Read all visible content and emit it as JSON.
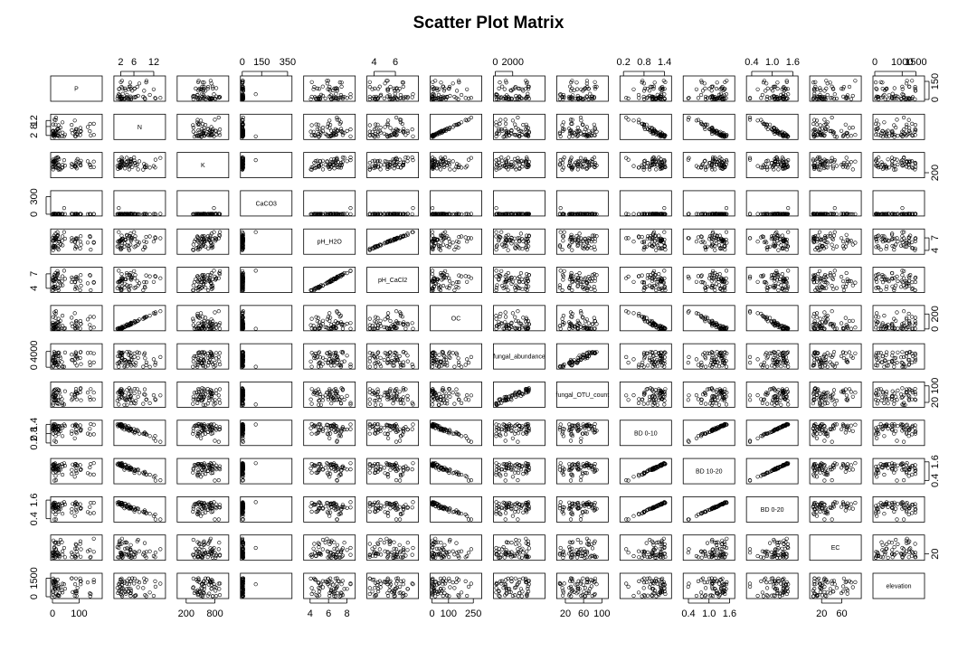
{
  "chart_data": {
    "type": "scatter",
    "title": "Scatter Plot Matrix",
    "variables": [
      {
        "name": "P",
        "range": [
          0,
          180
        ],
        "ticks": [
          {
            "value": 0,
            "label": "0"
          },
          {
            "value": 100,
            "label": "100"
          }
        ]
      },
      {
        "name": "N",
        "range": [
          0.5,
          15
        ],
        "ticks": [
          {
            "value": 2,
            "label": "2"
          },
          {
            "value": 6,
            "label": "6"
          },
          {
            "value": 12,
            "label": "12"
          }
        ]
      },
      {
        "name": "K",
        "range": [
          50,
          1050
        ],
        "ticks": [
          {
            "value": 200,
            "label": "200"
          },
          {
            "value": 800,
            "label": "800"
          }
        ]
      },
      {
        "name": "CaCO3",
        "range": [
          0,
          370
        ],
        "ticks": [
          {
            "value": 0,
            "label": "0"
          },
          {
            "value": 150,
            "label": "150"
          },
          {
            "value": 350,
            "label": "350"
          }
        ]
      },
      {
        "name": "pH_H2O",
        "range": [
          3.5,
          8.7
        ],
        "ticks": [
          {
            "value": 4,
            "label": "4"
          },
          {
            "value": 6,
            "label": "6"
          },
          {
            "value": 8,
            "label": "8"
          }
        ]
      },
      {
        "name": "pH_CaCl2",
        "range": [
          3.5,
          8.0
        ],
        "ticks": [
          {
            "value": 4,
            "label": "4"
          },
          {
            "value": 6,
            "label": "6"
          }
        ]
      },
      {
        "name": "OC",
        "range": [
          0,
          290
        ],
        "ticks": [
          {
            "value": 0,
            "label": "0"
          },
          {
            "value": 100,
            "label": "100"
          },
          {
            "value": 250,
            "label": "250"
          }
        ]
      },
      {
        "name": "fungal_abundance",
        "range": [
          0,
          5500
        ],
        "ticks": [
          {
            "value": 0,
            "label": "0"
          },
          {
            "value": 2000,
            "label": "2000"
          }
        ]
      },
      {
        "name": "fungal_OTU_count",
        "range": [
          5,
          110
        ],
        "ticks": [
          {
            "value": 20,
            "label": "20"
          },
          {
            "value": 60,
            "label": "60"
          },
          {
            "value": 100,
            "label": "100"
          }
        ]
      },
      {
        "name": "BD 0-10",
        "range": [
          0.15,
          1.55
        ],
        "ticks": [
          {
            "value": 0.2,
            "label": "0.2"
          },
          {
            "value": 0.8,
            "label": "0.8"
          },
          {
            "value": 1.4,
            "label": "1.4"
          }
        ]
      },
      {
        "name": "BD 10-20",
        "range": [
          0.3,
          1.7
        ],
        "ticks": [
          {
            "value": 0.4,
            "label": "0.4"
          },
          {
            "value": 1.0,
            "label": "1.0"
          },
          {
            "value": 1.6,
            "label": "1.6"
          }
        ]
      },
      {
        "name": "BD 0-20",
        "range": [
          0.3,
          1.7
        ],
        "ticks": [
          {
            "value": 0.4,
            "label": "0.4"
          },
          {
            "value": 1.0,
            "label": "1.0"
          },
          {
            "value": 1.6,
            "label": "1.6"
          }
        ]
      },
      {
        "name": "EC",
        "range": [
          0,
          95
        ],
        "ticks": [
          {
            "value": 20,
            "label": "20"
          },
          {
            "value": 60,
            "label": "60"
          }
        ]
      },
      {
        "name": "elevation",
        "range": [
          0,
          1750
        ],
        "ticks": [
          {
            "value": 0,
            "label": "0"
          },
          {
            "value": 1000,
            "label": "1000"
          },
          {
            "value": 1500,
            "label": "1500"
          }
        ]
      }
    ],
    "y_tick_overrides": {
      "P": [
        {
          "value": 0,
          "label": "0"
        },
        {
          "value": 150,
          "label": "150"
        }
      ],
      "N": [
        {
          "value": 2,
          "label": "2"
        },
        {
          "value": 8,
          "label": "8"
        },
        {
          "value": 12,
          "label": "12"
        }
      ],
      "K": [
        {
          "value": 200,
          "label": "200"
        }
      ],
      "CaCO3": [
        {
          "value": 0,
          "label": "0"
        },
        {
          "value": 300,
          "label": "300"
        }
      ],
      "pH_H2O": [
        {
          "value": 4,
          "label": "4"
        },
        {
          "value": 7,
          "label": "7"
        }
      ],
      "pH_CaCl2": [
        {
          "value": 4,
          "label": "4"
        },
        {
          "value": 7,
          "label": "7"
        }
      ],
      "OC": [
        {
          "value": 0,
          "label": "0"
        },
        {
          "value": 200,
          "label": "200"
        }
      ],
      "fungal_abundance": [
        {
          "value": 0,
          "label": "0"
        },
        {
          "value": 4000,
          "label": "4000"
        }
      ],
      "fungal_OTU_count": [
        {
          "value": 20,
          "label": "20"
        },
        {
          "value": 100,
          "label": "100"
        }
      ],
      "BD 0-10": [
        {
          "value": 0.2,
          "label": "0.2"
        },
        {
          "value": 0.8,
          "label": "0.8"
        },
        {
          "value": 1.4,
          "label": "1.4"
        }
      ],
      "BD 10-20": [
        {
          "value": 0.4,
          "label": "0.4"
        },
        {
          "value": 1.6,
          "label": "1.6"
        }
      ],
      "BD 0-20": [
        {
          "value": 0.4,
          "label": "0.4"
        },
        {
          "value": 1.6,
          "label": "1.6"
        }
      ],
      "EC": [
        {
          "value": 20,
          "label": "20"
        }
      ],
      "elevation": [
        {
          "value": 0,
          "label": "0"
        },
        {
          "value": 1500,
          "label": "1500"
        }
      ]
    },
    "diagonal_labels": [
      "P",
      "N",
      "K",
      "CaCO3",
      "pH_H2O",
      "pH_CaCl2",
      "OC",
      "fungal_abundance",
      "fungal_OTU_count",
      "BD 0-10",
      "BD 10-20",
      "BD 0-20",
      "EC",
      "elevation"
    ],
    "n_observations": 60,
    "observations": [],
    "grid": false,
    "legend": "none"
  }
}
